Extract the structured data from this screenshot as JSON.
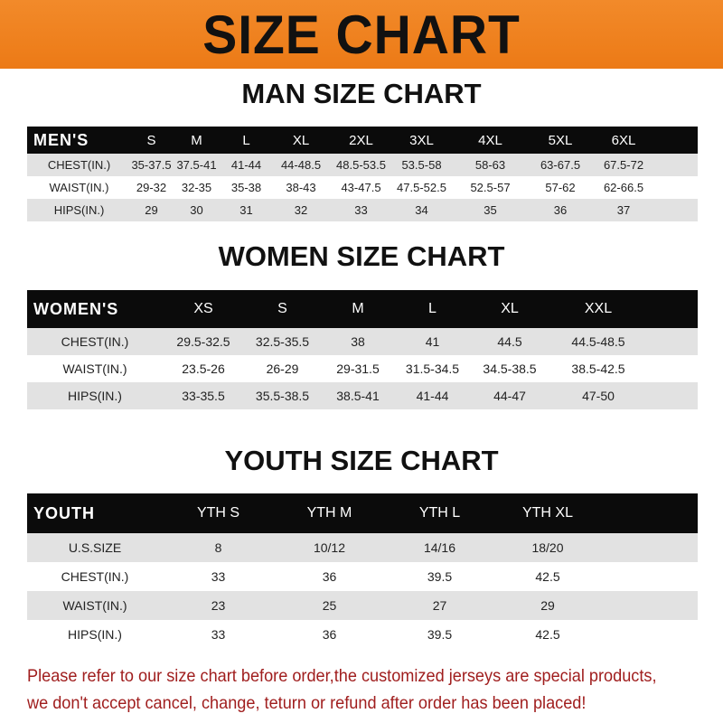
{
  "banner_title": "SIZE CHART",
  "accent_color": "#ec7a16",
  "men": {
    "title": "MAN SIZE CHART",
    "header": [
      "MEN'S",
      "S",
      "M",
      "L",
      "XL",
      "2XL",
      "3XL",
      "4XL",
      "5XL",
      "6XL"
    ],
    "rows": [
      [
        "CHEST(IN.)",
        "35-37.5",
        "37.5-41",
        "41-44",
        "44-48.5",
        "48.5-53.5",
        "53.5-58",
        "58-63",
        "63-67.5",
        "67.5-72"
      ],
      [
        "WAIST(IN.)",
        "29-32",
        "32-35",
        "35-38",
        "38-43",
        "43-47.5",
        "47.5-52.5",
        "52.5-57",
        "57-62",
        "62-66.5"
      ],
      [
        "HIPS(IN.)",
        "29",
        "30",
        "31",
        "32",
        "33",
        "34",
        "35",
        "36",
        "37"
      ]
    ]
  },
  "women": {
    "title": "WOMEN SIZE CHART",
    "header": [
      "WOMEN'S",
      "XS",
      "S",
      "M",
      "L",
      "XL",
      "XXL"
    ],
    "rows": [
      [
        "CHEST(IN.)",
        "29.5-32.5",
        "32.5-35.5",
        "38",
        "41",
        "44.5",
        "44.5-48.5"
      ],
      [
        "WAIST(IN.)",
        "23.5-26",
        "26-29",
        "29-31.5",
        "31.5-34.5",
        "34.5-38.5",
        "38.5-42.5"
      ],
      [
        "HIPS(IN.)",
        "33-35.5",
        "35.5-38.5",
        "38.5-41",
        "41-44",
        "44-47",
        "47-50"
      ]
    ]
  },
  "youth": {
    "title": "YOUTH SIZE CHART",
    "header": [
      "YOUTH",
      "YTH S",
      "YTH M",
      "YTH L",
      "YTH XL"
    ],
    "rows": [
      [
        "U.S.SIZE",
        "8",
        "10/12",
        "14/16",
        "18/20"
      ],
      [
        "CHEST(IN.)",
        "33",
        "36",
        "39.5",
        "42.5"
      ],
      [
        "WAIST(IN.)",
        "23",
        "25",
        "27",
        "29"
      ],
      [
        "HIPS(IN.)",
        "33",
        "36",
        "39.5",
        "42.5"
      ]
    ]
  },
  "note": [
    "Please refer to our size chart before order,the customized jerseys are special products,",
    "we don't accept cancel, change, teturn or refund after order has been placed!"
  ]
}
